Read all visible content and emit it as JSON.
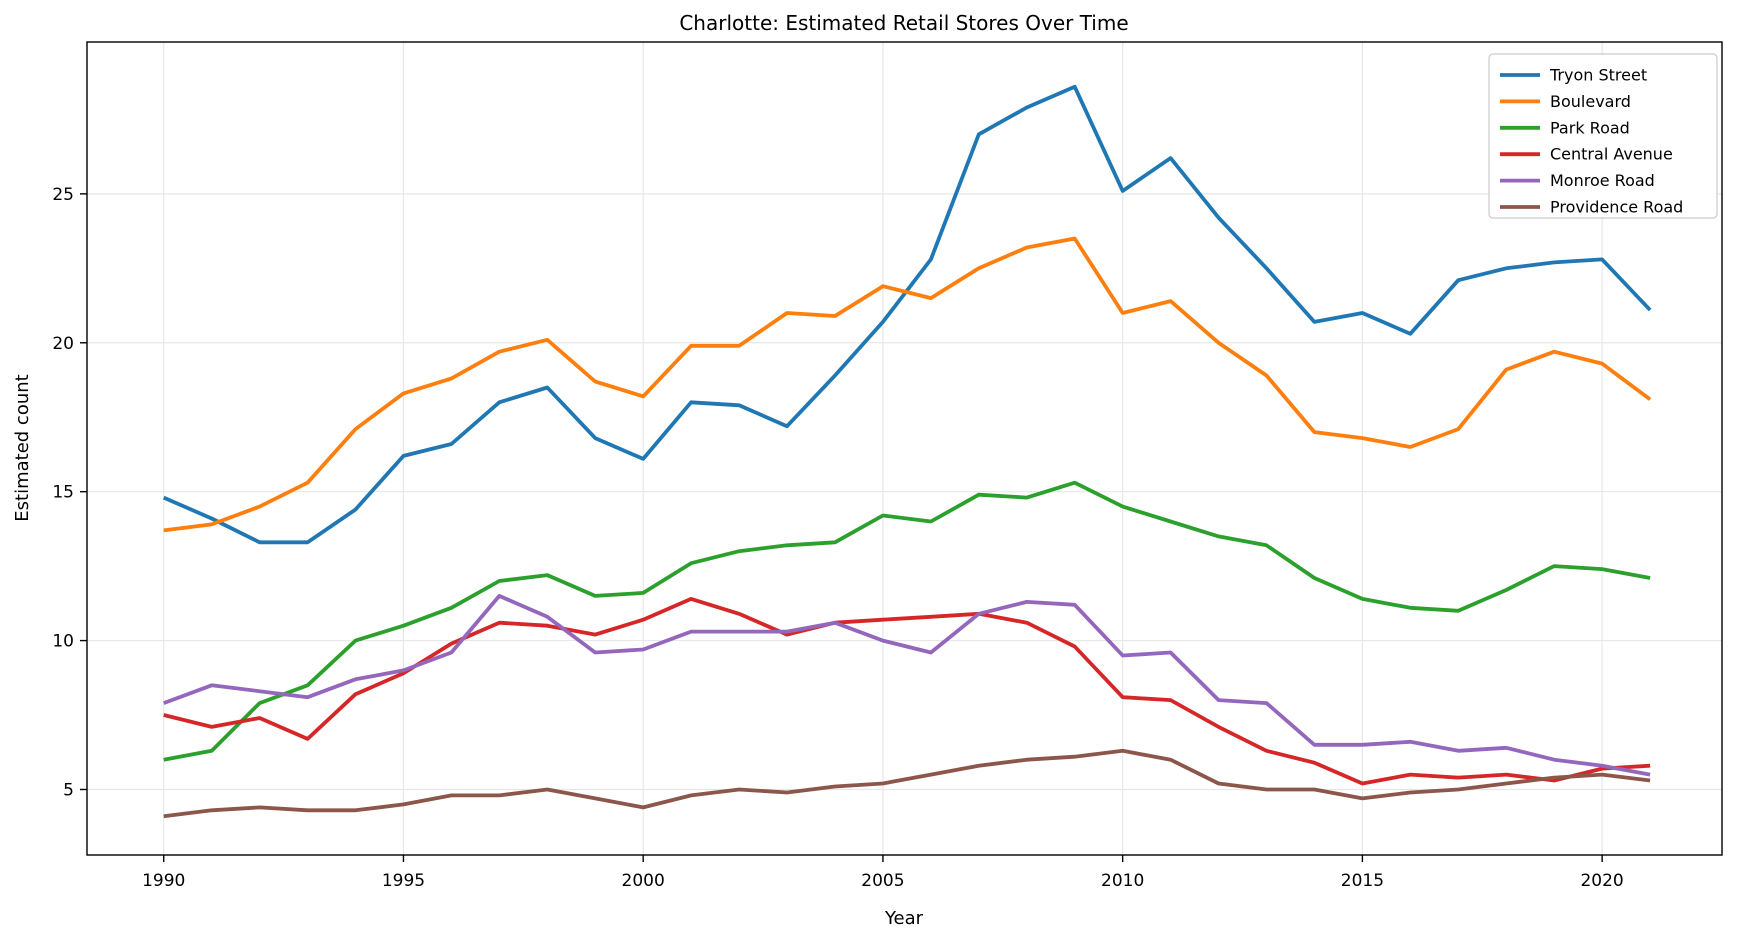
{
  "chart_data": {
    "type": "line",
    "title": "Charlotte: Estimated Retail Stores Over Time",
    "xlabel": "Year",
    "ylabel": "Estimated count",
    "grid": true,
    "grid_color": "#e7e7e7",
    "background": "#ffffff",
    "line_width": 3.8,
    "legend_position": "upper right",
    "xlim": [
      1988.4,
      2022.5
    ],
    "ylim": [
      2.8,
      30.1
    ],
    "xticks": [
      1990,
      1995,
      2000,
      2005,
      2010,
      2015,
      2020
    ],
    "yticks": [
      5,
      10,
      15,
      20,
      25
    ],
    "x": [
      1990,
      1991,
      1992,
      1993,
      1994,
      1995,
      1996,
      1997,
      1998,
      1999,
      2000,
      2001,
      2002,
      2003,
      2004,
      2005,
      2006,
      2007,
      2008,
      2009,
      2010,
      2011,
      2012,
      2013,
      2014,
      2015,
      2016,
      2017,
      2018,
      2019,
      2020,
      2021
    ],
    "series": [
      {
        "name": "Tryon Street",
        "color": "#1f77b4",
        "values": [
          14.8,
          14.1,
          13.3,
          13.3,
          14.4,
          16.2,
          16.6,
          18.0,
          18.5,
          16.8,
          16.1,
          18.0,
          17.9,
          17.2,
          18.9,
          20.7,
          22.8,
          27.0,
          27.9,
          28.6,
          25.1,
          26.2,
          24.2,
          22.5,
          20.7,
          21.0,
          20.3,
          22.1,
          22.5,
          22.7,
          22.8,
          21.1
        ]
      },
      {
        "name": "Boulevard",
        "color": "#ff7f0e",
        "values": [
          13.7,
          13.9,
          14.5,
          15.3,
          17.1,
          18.3,
          18.8,
          19.7,
          20.1,
          18.7,
          18.2,
          19.9,
          19.9,
          21.0,
          20.9,
          21.9,
          21.5,
          22.5,
          23.2,
          23.5,
          21.0,
          21.4,
          20.0,
          18.9,
          17.0,
          16.8,
          16.5,
          17.1,
          19.1,
          19.7,
          19.3,
          18.1
        ]
      },
      {
        "name": "Park Road",
        "color": "#2ca02c",
        "values": [
          6.0,
          6.3,
          7.9,
          8.5,
          10.0,
          10.5,
          11.1,
          12.0,
          12.2,
          11.5,
          11.6,
          12.6,
          13.0,
          13.2,
          13.3,
          14.2,
          14.0,
          14.9,
          14.8,
          15.3,
          14.5,
          14.0,
          13.5,
          13.2,
          12.1,
          11.4,
          11.1,
          11.0,
          11.7,
          12.5,
          12.4,
          12.1
        ]
      },
      {
        "name": "Central Avenue",
        "color": "#d62728",
        "values": [
          7.5,
          7.1,
          7.4,
          6.7,
          8.2,
          8.9,
          9.9,
          10.6,
          10.5,
          10.2,
          10.7,
          11.4,
          10.9,
          10.2,
          10.6,
          10.7,
          10.8,
          10.9,
          10.6,
          9.8,
          8.1,
          8.0,
          7.1,
          6.3,
          5.9,
          5.2,
          5.5,
          5.4,
          5.5,
          5.3,
          5.7,
          5.8
        ]
      },
      {
        "name": "Monroe Road",
        "color": "#9467bd",
        "values": [
          7.9,
          8.5,
          8.3,
          8.1,
          8.7,
          9.0,
          9.6,
          11.5,
          10.8,
          9.6,
          9.7,
          10.3,
          10.3,
          10.3,
          10.6,
          10.0,
          9.6,
          10.9,
          11.3,
          11.2,
          9.5,
          9.6,
          8.0,
          7.9,
          6.5,
          6.5,
          6.6,
          6.3,
          6.4,
          6.0,
          5.8,
          5.5
        ]
      },
      {
        "name": "Providence Road",
        "color": "#8c564b",
        "values": [
          4.1,
          4.3,
          4.4,
          4.3,
          4.3,
          4.5,
          4.8,
          4.8,
          5.0,
          4.7,
          4.4,
          4.8,
          5.0,
          4.9,
          5.1,
          5.2,
          5.5,
          5.8,
          6.0,
          6.1,
          6.3,
          6.0,
          5.2,
          5.0,
          5.0,
          4.7,
          4.9,
          5.0,
          5.2,
          5.4,
          5.5,
          5.3
        ]
      }
    ]
  }
}
